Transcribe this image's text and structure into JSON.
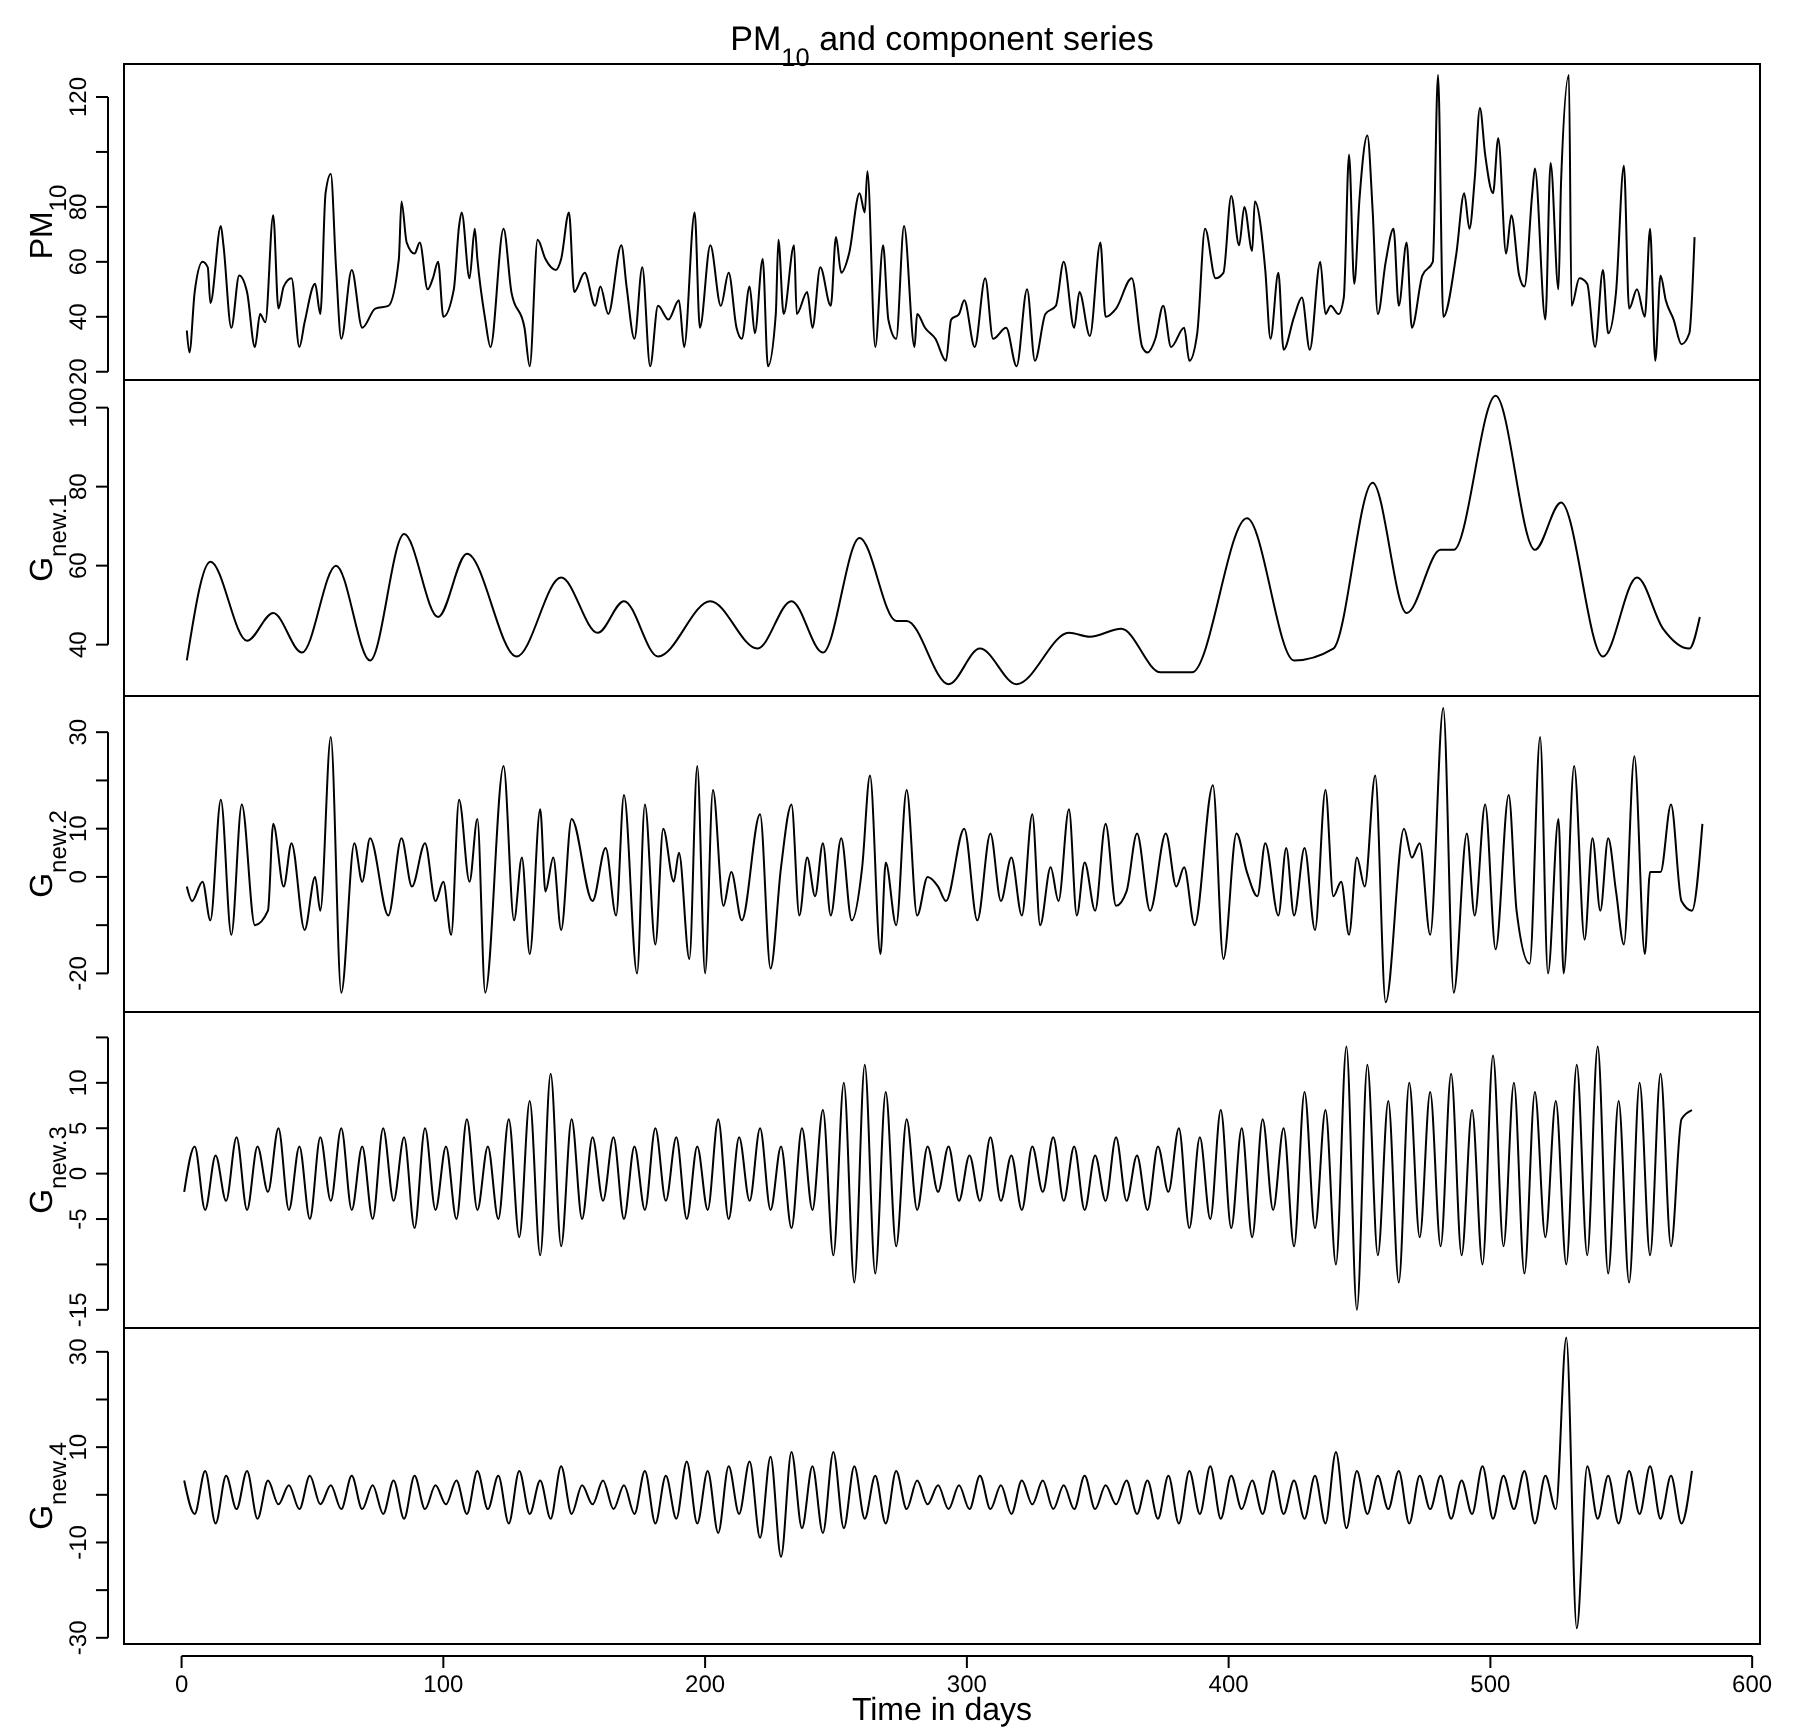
{
  "chart_data": [
    {
      "type": "line",
      "title": "PM$_{10}$ and component series",
      "ylabel": "PM$_{10}$",
      "color": "#000000",
      "tick_labels": "y",
      "xlim": [
        -22,
        603
      ],
      "xticks": [
        0,
        100,
        200,
        300,
        400,
        500,
        600
      ],
      "ylim": [
        17,
        132
      ],
      "yticks": [
        20,
        40,
        60,
        80,
        {
          "value": 100,
          "label": null
        },
        120
      ],
      "x": [
        2,
        3,
        5,
        8,
        10,
        11,
        15,
        16,
        19,
        22,
        25,
        28,
        30,
        32,
        35,
        37,
        39,
        42,
        45,
        47,
        51,
        53,
        55,
        57,
        59,
        61,
        65,
        69,
        74,
        79,
        83,
        84,
        86,
        89,
        91,
        94,
        96,
        98,
        100,
        104,
        106,
        107,
        110,
        112,
        113,
        116,
        118,
        123,
        126,
        131,
        133,
        136,
        139,
        143,
        145,
        148,
        150,
        154,
        158,
        160,
        163,
        168,
        170,
        173,
        176,
        179,
        182,
        186,
        190,
        192,
        196,
        198,
        202,
        206,
        209,
        212,
        214,
        217,
        219,
        222,
        224,
        227,
        228,
        230,
        234,
        235,
        239,
        241,
        244,
        248,
        250,
        252,
        255,
        259,
        261,
        262,
        265,
        268,
        270,
        273,
        276,
        280,
        281,
        284,
        288,
        292,
        294,
        297,
        299,
        303,
        307,
        310,
        315,
        319,
        323,
        326,
        330,
        334,
        337,
        341,
        343,
        347,
        351,
        353,
        357,
        363,
        367,
        369,
        372,
        375,
        378,
        383,
        385,
        388,
        391,
        395,
        398,
        401,
        404,
        406,
        409,
        410,
        414,
        416,
        419,
        421,
        425,
        428,
        431,
        435,
        437,
        439,
        442,
        444,
        446,
        448,
        450,
        453,
        455,
        457,
        460,
        463,
        465,
        468,
        470,
        474,
        478,
        480,
        482,
        487,
        490,
        492,
        494,
        496,
        498,
        501,
        503,
        506,
        508,
        511,
        513,
        516,
        517,
        521,
        523,
        526,
        527,
        530,
        531,
        534,
        537,
        540,
        543,
        545,
        548,
        551,
        553,
        556,
        559,
        561,
        563,
        565,
        567,
        570,
        573,
        576,
        578
      ],
      "values": [
        35,
        27,
        49,
        60,
        58,
        45,
        73,
        66,
        36,
        55,
        49,
        29,
        41,
        38,
        77,
        43,
        51,
        54,
        29,
        38,
        52,
        41,
        85,
        92,
        58,
        32,
        57,
        36,
        43,
        44,
        61,
        82,
        67,
        63,
        67,
        50,
        54,
        60,
        40,
        50,
        73,
        78,
        54,
        72,
        61,
        39,
        29,
        72,
        49,
        36,
        22,
        68,
        61,
        57,
        61,
        78,
        49,
        56,
        44,
        51,
        41,
        66,
        51,
        32,
        58,
        22,
        44,
        39,
        46,
        29,
        78,
        36,
        66,
        44,
        56,
        36,
        32,
        51,
        34,
        61,
        22,
        41,
        68,
        41,
        66,
        41,
        49,
        36,
        58,
        44,
        69,
        56,
        63,
        85,
        78,
        93,
        29,
        66,
        39,
        32,
        73,
        29,
        41,
        36,
        32,
        24,
        39,
        41,
        46,
        29,
        54,
        32,
        36,
        22,
        50,
        24,
        41,
        44,
        60,
        36,
        49,
        33,
        67,
        40,
        43,
        54,
        29,
        27,
        32,
        44,
        29,
        36,
        24,
        34,
        72,
        54,
        56,
        84,
        66,
        80,
        64,
        82,
        57,
        32,
        56,
        28,
        40,
        47,
        28,
        60,
        41,
        44,
        41,
        47,
        99,
        52,
        83,
        106,
        79,
        41,
        60,
        72,
        44,
        67,
        36,
        55,
        60,
        128,
        40,
        63,
        85,
        72,
        90,
        116,
        99,
        85,
        105,
        63,
        77,
        55,
        51,
        85,
        94,
        39,
        96,
        50,
        89,
        128,
        44,
        54,
        52,
        29,
        57,
        34,
        49,
        95,
        43,
        50,
        40,
        72,
        24,
        55,
        46,
        39,
        30,
        34,
        69
      ]
    },
    {
      "type": "line",
      "ylabel": "G$_{new.1}$",
      "color": "#000000",
      "tick_labels": "y",
      "xlim": [
        -22,
        603
      ],
      "xticks": [
        0,
        100,
        200,
        300,
        400,
        500,
        600
      ],
      "ylim": [
        27,
        107
      ],
      "yticks": [
        40,
        60,
        80,
        100
      ],
      "x": [
        2,
        11,
        25,
        35,
        46,
        59,
        72,
        85,
        98,
        109,
        128,
        145,
        159,
        169,
        182,
        202,
        220,
        233,
        245,
        259,
        273,
        277,
        293,
        305,
        319,
        339,
        347,
        359,
        374,
        386,
        407,
        425,
        440,
        455,
        468,
        481,
        486,
        502,
        517,
        527,
        543,
        556,
        566,
        576,
        580
      ],
      "values": [
        36,
        61,
        41,
        48,
        38,
        60,
        36,
        68,
        47,
        63,
        37,
        57,
        43,
        51,
        37,
        51,
        39,
        51,
        38,
        67,
        46,
        46,
        30,
        39,
        30,
        43,
        42,
        44,
        33,
        33,
        72,
        36,
        39,
        81,
        48,
        64,
        64,
        103,
        64,
        76,
        37,
        57,
        44,
        39,
        47
      ]
    },
    {
      "type": "line",
      "ylabel": "G$_{new.2}$",
      "color": "#000000",
      "tick_labels": "y",
      "xlim": [
        -22,
        603
      ],
      "xticks": [
        0,
        100,
        200,
        300,
        400,
        500,
        600
      ],
      "ylim": [
        -28,
        37.5
      ],
      "yticks": [
        30,
        {
          "value": 20,
          "label": null
        },
        10,
        0,
        {
          "value": -10,
          "label": null
        },
        -20
      ],
      "x": [
        2,
        4,
        8,
        11,
        15,
        19,
        23,
        28,
        33,
        35,
        39,
        42,
        47,
        51,
        53,
        57,
        61,
        66,
        69,
        72,
        79,
        84,
        88,
        93,
        97,
        100,
        103,
        106,
        110,
        113,
        116,
        123,
        127,
        130,
        133,
        137,
        139,
        142,
        145,
        149,
        157,
        162,
        166,
        169,
        174,
        177,
        181,
        184,
        188,
        190,
        194,
        197,
        200,
        203,
        207,
        210,
        214,
        221,
        225,
        229,
        233,
        236,
        239,
        242,
        245,
        248,
        252,
        256,
        260,
        263,
        267,
        269,
        273,
        277,
        281,
        285,
        289,
        292,
        299,
        304,
        309,
        313,
        317,
        321,
        325,
        328,
        332,
        335,
        339,
        342,
        345,
        349,
        353,
        357,
        361,
        365,
        370,
        376,
        380,
        383,
        387,
        394,
        398,
        403,
        407,
        411,
        414,
        419,
        422,
        425,
        429,
        433,
        437,
        440,
        443,
        446,
        449,
        452,
        456,
        460,
        467,
        470,
        473,
        477,
        482,
        486,
        491,
        494,
        498,
        502,
        507,
        510,
        515,
        519,
        522,
        526,
        528,
        532,
        536,
        539,
        542,
        545,
        548,
        551,
        555,
        559,
        561,
        565,
        569,
        573,
        577,
        581
      ],
      "values": [
        -2,
        -5,
        -1,
        -9,
        16,
        -12,
        15,
        -10,
        -7,
        11,
        -2,
        7,
        -11,
        0,
        -7,
        29,
        -24,
        7,
        -1,
        8,
        -8,
        8,
        -2,
        7,
        -5,
        -1,
        -12,
        16,
        -1,
        12,
        -24,
        23,
        -9,
        4,
        -16,
        14,
        -3,
        4,
        -11,
        12,
        -5,
        6,
        -8,
        17,
        -20,
        15,
        -14,
        10,
        -1,
        5,
        -17,
        23,
        -20,
        18,
        -6,
        1,
        -9,
        13,
        -19,
        2,
        15,
        -8,
        4,
        -4,
        7,
        -8,
        8,
        -9,
        2,
        21,
        -16,
        3,
        -10,
        18,
        -8,
        0,
        -2,
        -5,
        10,
        -9,
        9,
        -5,
        4,
        -8,
        13,
        -10,
        2,
        -5,
        14,
        -8,
        3,
        -7,
        11,
        -6,
        -3,
        9,
        -7,
        9,
        -2,
        2,
        -10,
        19,
        -17,
        9,
        1,
        -4,
        7,
        -8,
        6,
        -8,
        6,
        -11,
        18,
        -4,
        -1,
        -12,
        4,
        -2,
        21,
        -26,
        10,
        4,
        7,
        -12,
        35,
        -24,
        9,
        -8,
        15,
        -15,
        17,
        -7,
        -18,
        29,
        -20,
        12,
        -20,
        23,
        -13,
        8,
        -7,
        8,
        -3,
        -14,
        25,
        -16,
        1,
        1,
        15,
        -5,
        -7,
        11
      ]
    },
    {
      "type": "line",
      "ylabel": "G$_{new.3}$",
      "color": "#000000",
      "tick_labels": "y",
      "xlim": [
        -22,
        603
      ],
      "xticks": [
        0,
        100,
        200,
        300,
        400,
        500,
        600
      ],
      "ylim": [
        -17,
        17.8
      ],
      "yticks": [
        {
          "value": 15,
          "label": null
        },
        10,
        5,
        0,
        -5,
        {
          "value": -10,
          "label": null
        },
        -15
      ],
      "x": [
        1,
        5,
        9,
        13,
        17,
        21,
        25,
        29,
        33,
        37,
        41,
        45,
        49,
        53,
        57,
        61,
        65,
        69,
        73,
        77,
        81,
        85,
        89,
        93,
        97,
        101,
        105,
        109,
        113,
        117,
        121,
        125,
        129,
        133,
        137,
        141,
        145,
        149,
        153,
        157,
        161,
        165,
        169,
        173,
        177,
        181,
        185,
        189,
        193,
        197,
        201,
        205,
        209,
        213,
        217,
        221,
        225,
        229,
        233,
        237,
        241,
        245,
        249,
        253,
        257,
        261,
        265,
        269,
        273,
        277,
        281,
        285,
        289,
        293,
        297,
        301,
        305,
        309,
        313,
        317,
        321,
        325,
        329,
        333,
        337,
        341,
        345,
        349,
        353,
        357,
        361,
        365,
        369,
        373,
        377,
        381,
        385,
        389,
        393,
        397,
        401,
        405,
        409,
        413,
        417,
        421,
        425,
        429,
        433,
        437,
        441,
        445,
        449,
        453,
        457,
        461,
        465,
        469,
        473,
        477,
        481,
        485,
        489,
        493,
        497,
        501,
        505,
        509,
        513,
        517,
        521,
        525,
        529,
        533,
        537,
        541,
        545,
        549,
        553,
        557,
        561,
        565,
        569,
        573,
        577
      ],
      "values": [
        -2,
        3,
        -4,
        2,
        -3,
        4,
        -4,
        3,
        -2,
        5,
        -4,
        3,
        -5,
        4,
        -3,
        5,
        -4,
        3,
        -5,
        5,
        -3,
        4,
        -6,
        5,
        -4,
        3,
        -5,
        6,
        -4,
        3,
        -5,
        6,
        -7,
        8,
        -9,
        11,
        -8,
        6,
        -5,
        4,
        -3,
        4,
        -5,
        3,
        -4,
        5,
        -3,
        4,
        -5,
        3,
        -4,
        6,
        -5,
        4,
        -3,
        5,
        -4,
        3,
        -6,
        5,
        -4,
        7,
        -9,
        10,
        -12,
        12,
        -11,
        9,
        -8,
        6,
        -4,
        3,
        -2,
        3,
        -3,
        2,
        -3,
        4,
        -3,
        2,
        -4,
        3,
        -2,
        4,
        -3,
        3,
        -4,
        2,
        -3,
        4,
        -3,
        2,
        -4,
        3,
        -2,
        5,
        -6,
        4,
        -5,
        7,
        -6,
        5,
        -7,
        6,
        -4,
        5,
        -8,
        9,
        -6,
        7,
        -10,
        14,
        -15,
        12,
        -9,
        8,
        -12,
        10,
        -7,
        9,
        -8,
        11,
        -9,
        7,
        -10,
        13,
        -8,
        10,
        -11,
        9,
        -7,
        8,
        -10,
        12,
        -9,
        14,
        -11,
        8,
        -12,
        10,
        -9,
        11,
        -8,
        6,
        7
      ]
    },
    {
      "type": "line",
      "ylabel": "G$_{new.4}$",
      "xlabel": "Time in days",
      "color": "#000000",
      "xlim": [
        -22,
        603
      ],
      "xticks": [
        0,
        100,
        200,
        300,
        400,
        500,
        600
      ],
      "ylim": [
        -31.3,
        35
      ],
      "yticks": [
        30,
        {
          "value": 20,
          "label": null
        },
        10,
        {
          "value": 0,
          "label": null
        },
        -10,
        {
          "value": -20,
          "label": null
        },
        -30
      ],
      "x": [
        1,
        5,
        9,
        13,
        17,
        21,
        25,
        29,
        33,
        37,
        41,
        45,
        49,
        53,
        57,
        61,
        65,
        69,
        73,
        77,
        81,
        85,
        89,
        93,
        97,
        101,
        105,
        109,
        113,
        117,
        121,
        125,
        129,
        133,
        137,
        141,
        145,
        149,
        153,
        157,
        161,
        165,
        169,
        173,
        177,
        181,
        185,
        189,
        193,
        197,
        201,
        205,
        209,
        213,
        217,
        221,
        225,
        229,
        233,
        237,
        241,
        245,
        249,
        253,
        257,
        261,
        265,
        269,
        273,
        277,
        281,
        285,
        289,
        293,
        297,
        301,
        305,
        309,
        313,
        317,
        321,
        325,
        329,
        333,
        337,
        341,
        345,
        349,
        353,
        357,
        361,
        365,
        369,
        373,
        377,
        381,
        385,
        389,
        393,
        397,
        401,
        405,
        409,
        413,
        417,
        421,
        425,
        429,
        433,
        437,
        441,
        445,
        449,
        453,
        457,
        461,
        465,
        469,
        473,
        477,
        481,
        485,
        489,
        493,
        497,
        501,
        505,
        509,
        513,
        517,
        521,
        525,
        529,
        533,
        537,
        541,
        545,
        549,
        553,
        557,
        561,
        565,
        569,
        573,
        577
      ],
      "values": [
        3,
        -4,
        5,
        -6,
        4,
        -3,
        5,
        -5,
        3,
        -2,
        2,
        -3,
        4,
        -2,
        2,
        -3,
        4,
        -3,
        2,
        -4,
        3,
        -5,
        4,
        -3,
        2,
        -2,
        3,
        -4,
        5,
        -3,
        4,
        -6,
        5,
        -4,
        3,
        -5,
        6,
        -4,
        2,
        -2,
        3,
        -3,
        2,
        -4,
        5,
        -6,
        4,
        -5,
        7,
        -6,
        5,
        -8,
        6,
        -4,
        7,
        -9,
        8,
        -13,
        9,
        -7,
        6,
        -8,
        9,
        -7,
        6,
        -5,
        4,
        -6,
        5,
        -3,
        3,
        -2,
        2,
        -3,
        2,
        -3,
        4,
        -3,
        2,
        -4,
        3,
        -2,
        3,
        -3,
        2,
        -3,
        4,
        -3,
        2,
        -2,
        3,
        -4,
        3,
        -5,
        4,
        -6,
        5,
        -4,
        6,
        -5,
        4,
        -3,
        3,
        -4,
        5,
        -4,
        3,
        -5,
        4,
        -6,
        9,
        -7,
        5,
        -4,
        4,
        -3,
        5,
        -6,
        4,
        -3,
        4,
        -5,
        3,
        -4,
        6,
        -5,
        4,
        -3,
        5,
        -6,
        4,
        -3,
        33,
        -28,
        6,
        -5,
        4,
        -6,
        5,
        -4,
        6,
        -5,
        4,
        -6,
        5
      ]
    }
  ]
}
